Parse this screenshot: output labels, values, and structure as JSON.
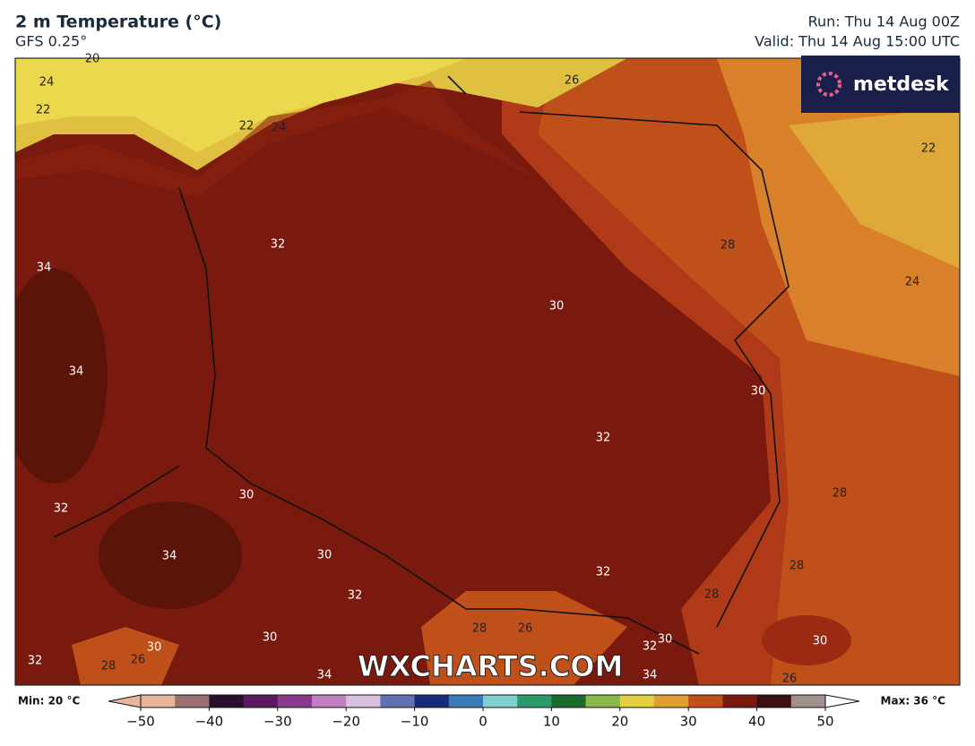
{
  "header": {
    "title": "2 m Temperature (°C)",
    "subtitle": "GFS 0.25°",
    "run": "Run: Thu 14 Aug 00Z",
    "valid": "Valid: Thu 14 Aug 15:00 UTC"
  },
  "logo": "metdesk",
  "watermark": "WXCHARTS.COM",
  "contour_labels": [
    20,
    24,
    22,
    22,
    24,
    26,
    22,
    32,
    34,
    28,
    24,
    30,
    34,
    30,
    32,
    28,
    30,
    32,
    34,
    30,
    32,
    28,
    32,
    28,
    30,
    28,
    26,
    30,
    32,
    30,
    30,
    32,
    28,
    26,
    34,
    34,
    26
  ],
  "colorbar": {
    "min_label": "Min: 20 °C",
    "max_label": "Max: 36 °C",
    "range": [
      -50,
      50
    ],
    "colors": [
      "#e8b49a",
      "#9a7070",
      "#2b0f2e",
      "#5a1a5e",
      "#8a3a8e",
      "#c080c0",
      "#d8c0e0",
      "#6070b0",
      "#1a2a7a",
      "#3a7ab8",
      "#80d0d0",
      "#2a9a6a",
      "#1a6a2a",
      "#8ab84a",
      "#e0d040",
      "#e0a030",
      "#c0501a",
      "#7a1a0e",
      "#3a1010",
      "#a09090"
    ],
    "ticks": [
      {
        "value": -50,
        "label": "−50"
      },
      {
        "value": -40,
        "label": "−40"
      },
      {
        "value": -30,
        "label": "−30"
      },
      {
        "value": -20,
        "label": "−20"
      },
      {
        "value": -10,
        "label": "−10"
      },
      0,
      10,
      20,
      30,
      40,
      50
    ]
  }
}
